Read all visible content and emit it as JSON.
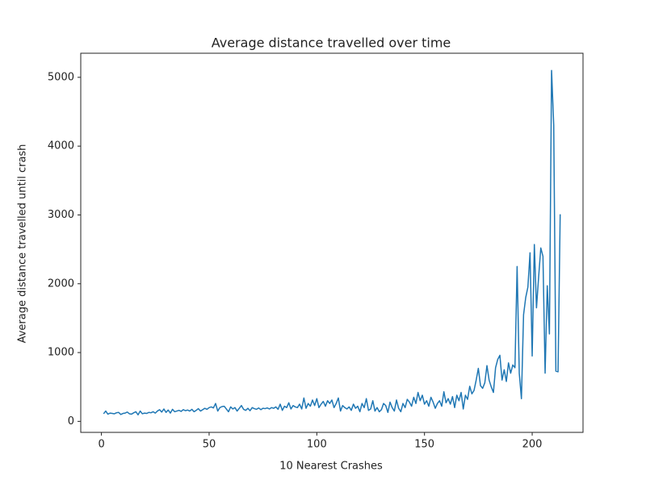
{
  "chart_data": {
    "type": "line",
    "title": "Average distance travelled over time",
    "x_label": "10 Nearest Crashes",
    "y_label": "Average distance travelled until crash",
    "x": [
      1,
      2,
      3,
      4,
      5,
      6,
      7,
      8,
      9,
      10,
      11,
      12,
      13,
      14,
      15,
      16,
      17,
      18,
      19,
      20,
      21,
      22,
      23,
      24,
      25,
      26,
      27,
      28,
      29,
      30,
      31,
      32,
      33,
      34,
      35,
      36,
      37,
      38,
      39,
      40,
      41,
      42,
      43,
      44,
      45,
      46,
      47,
      48,
      49,
      50,
      51,
      52,
      53,
      54,
      55,
      56,
      57,
      58,
      59,
      60,
      61,
      62,
      63,
      64,
      65,
      66,
      67,
      68,
      69,
      70,
      71,
      72,
      73,
      74,
      75,
      76,
      77,
      78,
      79,
      80,
      81,
      82,
      83,
      84,
      85,
      86,
      87,
      88,
      89,
      90,
      91,
      92,
      93,
      94,
      95,
      96,
      97,
      98,
      99,
      100,
      101,
      102,
      103,
      104,
      105,
      106,
      107,
      108,
      109,
      110,
      111,
      112,
      113,
      114,
      115,
      116,
      117,
      118,
      119,
      120,
      121,
      122,
      123,
      124,
      125,
      126,
      127,
      128,
      129,
      130,
      131,
      132,
      133,
      134,
      135,
      136,
      137,
      138,
      139,
      140,
      141,
      142,
      143,
      144,
      145,
      146,
      147,
      148,
      149,
      150,
      151,
      152,
      153,
      154,
      155,
      156,
      157,
      158,
      159,
      160,
      161,
      162,
      163,
      164,
      165,
      166,
      167,
      168,
      169,
      170,
      171,
      172,
      173,
      174,
      175,
      176,
      177,
      178,
      179,
      180,
      181,
      182,
      183,
      184,
      185,
      186,
      187,
      188,
      189,
      190,
      191,
      192,
      193,
      194,
      195,
      196,
      197,
      198,
      199,
      200,
      201,
      202,
      203,
      204,
      205,
      206,
      207,
      208,
      209,
      210,
      211,
      212,
      213
    ],
    "series": [
      {
        "name": "distance",
        "color": "#1f77b4",
        "values": [
          110,
          150,
          105,
          120,
          115,
          110,
          125,
          130,
          100,
          115,
          120,
          135,
          110,
          105,
          125,
          140,
          95,
          150,
          110,
          120,
          115,
          130,
          125,
          140,
          120,
          150,
          170,
          135,
          180,
          130,
          165,
          120,
          175,
          140,
          150,
          160,
          145,
          170,
          155,
          165,
          150,
          175,
          140,
          160,
          185,
          150,
          170,
          190,
          175,
          200,
          210,
          195,
          260,
          150,
          200,
          215,
          220,
          180,
          140,
          210,
          180,
          200,
          150,
          190,
          230,
          175,
          160,
          190,
          155,
          200,
          185,
          175,
          195,
          170,
          190,
          185,
          195,
          180,
          200,
          190,
          210,
          175,
          250,
          160,
          220,
          200,
          270,
          180,
          230,
          210,
          200,
          250,
          180,
          340,
          190,
          260,
          220,
          310,
          230,
          330,
          200,
          250,
          290,
          220,
          300,
          260,
          310,
          200,
          260,
          340,
          150,
          230,
          200,
          180,
          210,
          160,
          250,
          190,
          220,
          140,
          260,
          200,
          330,
          160,
          180,
          300,
          150,
          200,
          140,
          170,
          260,
          230,
          130,
          280,
          200,
          150,
          310,
          190,
          140,
          260,
          200,
          320,
          280,
          220,
          350,
          260,
          420,
          300,
          380,
          250,
          300,
          220,
          350,
          280,
          190,
          260,
          300,
          220,
          430,
          270,
          330,
          250,
          360,
          200,
          380,
          300,
          420,
          180,
          380,
          320,
          510,
          400,
          450,
          600,
          770,
          520,
          480,
          560,
          810,
          600,
          500,
          420,
          780,
          900,
          960,
          600,
          750,
          580,
          850,
          700,
          820,
          780,
          2250,
          700,
          330,
          1550,
          1800,
          1950,
          2450,
          950,
          2570,
          1650,
          2100,
          2520,
          2400,
          700,
          1970,
          1270,
          5100,
          4300,
          730,
          720,
          3010
        ]
      }
    ],
    "xlim": [
      -9.6,
      223.6
    ],
    "xticks": [
      0,
      50,
      100,
      150,
      200
    ],
    "ylim": [
      -160,
      5350
    ],
    "yticks": [
      0,
      1000,
      2000,
      3000,
      4000,
      5000
    ]
  }
}
